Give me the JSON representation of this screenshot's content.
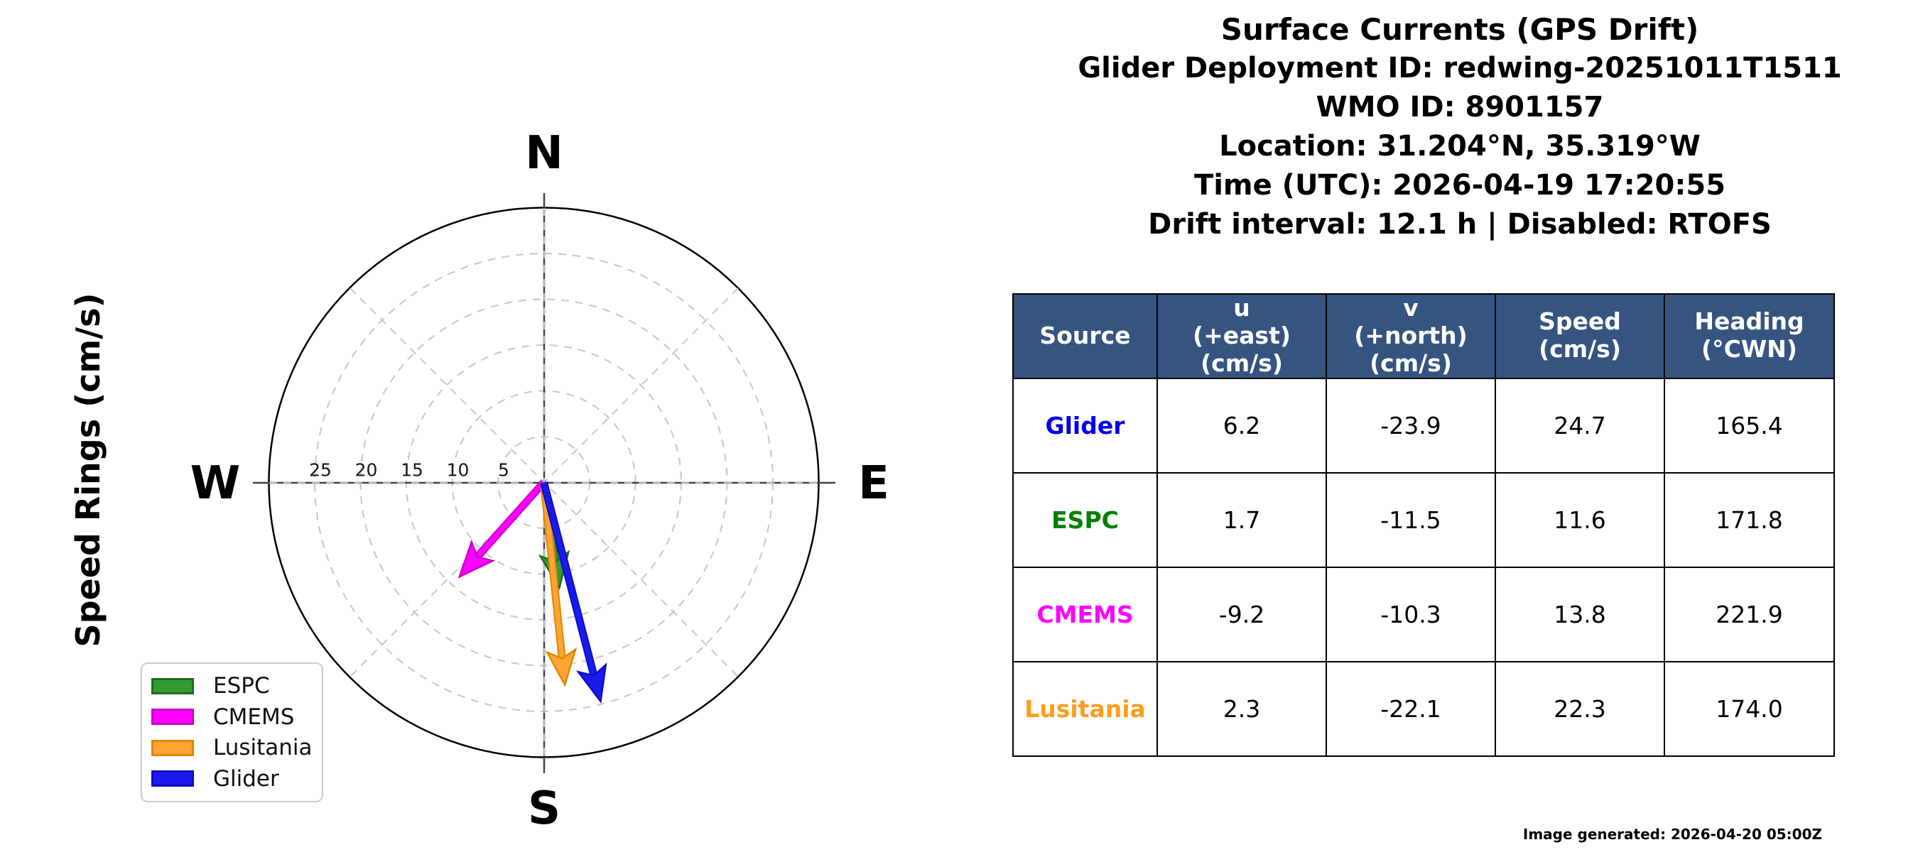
{
  "page": {
    "background": "#ffffff"
  },
  "header": {
    "lines": [
      "Surface Currents (GPS Drift)",
      "Glider Deployment ID: redwing-20251011T1511",
      "WMO ID: 8901157",
      "Location: 31.204°N, 35.319°W",
      "Time (UTC): 2026-04-19 17:20:55",
      "Drift interval: 12.1 h | Disabled: RTOFS"
    ]
  },
  "chart_data": {
    "type": "polar_quiver",
    "title": "Surface Currents (GPS Drift)",
    "axis_label": "Speed Rings (cm/s)",
    "units": "cm/s",
    "compass": {
      "north": "N",
      "east": "E",
      "south": "S",
      "west": "W"
    },
    "speed_rings_cms": [
      5,
      10,
      15,
      20,
      25
    ],
    "outer_ring_cms": 30,
    "ring_tick_labels": [
      "25",
      "20",
      "15",
      "10",
      "5"
    ],
    "grid": {
      "rings_dashed": true,
      "diagonals_dashed": true,
      "axis_color": "#3F444C",
      "grid_color": "#C3C7D1"
    },
    "series": [
      {
        "name": "ESPC",
        "u_cms": 1.7,
        "v_cms": -11.5,
        "speed_cms": 11.6,
        "heading_deg_cwn": 171.8,
        "color": "#339933",
        "edge_color": "#1E6B1E"
      },
      {
        "name": "CMEMS",
        "u_cms": -9.2,
        "v_cms": -10.3,
        "speed_cms": 13.8,
        "heading_deg_cwn": 221.9,
        "color": "#FF00FF",
        "edge_color": "#CC00CC"
      },
      {
        "name": "Lusitania",
        "u_cms": 2.3,
        "v_cms": -22.1,
        "speed_cms": 22.3,
        "heading_deg_cwn": 174.0,
        "color": "#FFA435",
        "edge_color": "#E08700"
      },
      {
        "name": "Glider",
        "u_cms": 6.2,
        "v_cms": -23.9,
        "speed_cms": 24.7,
        "heading_deg_cwn": 165.4,
        "color": "#1A1AEE",
        "edge_color": "#0E0EC0"
      }
    ],
    "legend": {
      "order": [
        "ESPC",
        "CMEMS",
        "Lusitania",
        "Glider"
      ],
      "position": "lower left"
    }
  },
  "table": {
    "header_bg": "#365480",
    "headers": [
      "Source",
      "u\n(+east)\n(cm/s)",
      "v\n(+north)\n(cm/s)",
      "Speed\n(cm/s)",
      "Heading\n(°CWN)"
    ],
    "rows": [
      {
        "source": "Glider",
        "color": "#0000EE",
        "u": "6.2",
        "v": "-23.9",
        "speed": "24.7",
        "heading": "165.4"
      },
      {
        "source": "ESPC",
        "color": "#008000",
        "u": "1.7",
        "v": "-11.5",
        "speed": "11.6",
        "heading": "171.8"
      },
      {
        "source": "CMEMS",
        "color": "#FF00FF",
        "u": "-9.2",
        "v": "-10.3",
        "speed": "13.8",
        "heading": "221.9"
      },
      {
        "source": "Lusitania",
        "color": "#FF9D1E",
        "u": "2.3",
        "v": "-22.1",
        "speed": "22.3",
        "heading": "174.0"
      }
    ]
  },
  "footer": {
    "generated_label": "Image generated: 2026-04-20 05:00Z"
  }
}
